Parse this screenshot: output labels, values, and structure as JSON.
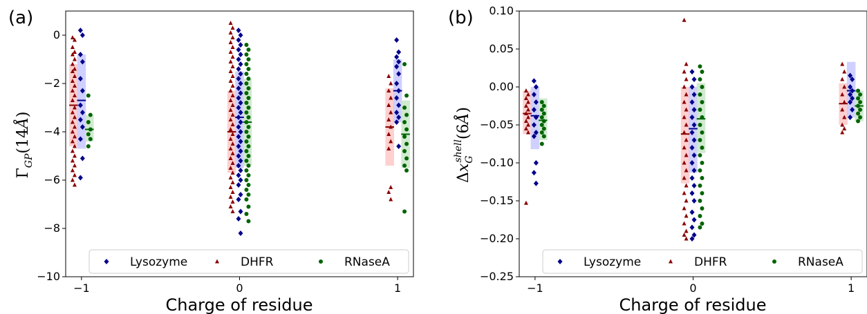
{
  "figure": {
    "panel_a": "(a)",
    "panel_b": "(b)"
  },
  "colors": {
    "Lysozyme": "#00008b",
    "DHFR": "#8b0000",
    "RNaseA": "#006400",
    "Lysozyme_box": "#c8c8ff",
    "DHFR_box": "#ffc8c8",
    "RNaseA_box": "#c8e6c8"
  },
  "chart_data": [
    {
      "type": "scatter",
      "panel": "(a)",
      "xlabel": "Charge of residue",
      "ylabel": "Γ_GP(14Å)",
      "xlim": [
        -1.1,
        1.1
      ],
      "ylim": [
        -10,
        1
      ],
      "xticks": [
        -1,
        0,
        1
      ],
      "xtick_labels": [
        "−1",
        "0",
        "1"
      ],
      "yticks": [
        -10,
        -8,
        -6,
        -4,
        -2,
        0
      ],
      "ytick_labels": [
        "−10",
        "−8",
        "−6",
        "−4",
        "−2",
        "0"
      ],
      "legend": {
        "placement": "lower-right",
        "entries": [
          "Lysozyme",
          "DHFR",
          "RNaseA"
        ]
      },
      "series": [
        {
          "name": "DHFR",
          "marker": "triangle",
          "offset": -0.05,
          "groups": [
            {
              "x": -1,
              "mean": -2.9,
              "band": [
                -4.6,
                -1.2
              ],
              "points": [
                -0.1,
                -0.2,
                -0.5,
                -0.7,
                -0.8,
                -1.0,
                -1.2,
                -1.4,
                -1.5,
                -1.7,
                -1.9,
                -2.1,
                -2.3,
                -2.5,
                -2.7,
                -3.0,
                -3.2,
                -3.4,
                -3.6,
                -3.8,
                -4.0,
                -4.2,
                -4.4,
                -4.6,
                -4.8,
                -5.0,
                -5.2,
                -5.4,
                -5.6,
                -5.8,
                -6.0,
                -6.2
              ]
            },
            {
              "x": 0,
              "mean": -4.0,
              "band": [
                -5.7,
                -2.3
              ],
              "points": [
                0.5,
                0.3,
                0.1,
                -0.1,
                -0.3,
                -0.5,
                -0.7,
                -0.9,
                -1.1,
                -1.3,
                -1.5,
                -1.7,
                -1.9,
                -2.1,
                -2.3,
                -2.5,
                -2.7,
                -2.9,
                -3.1,
                -3.3,
                -3.5,
                -3.7,
                -3.9,
                -4.1,
                -4.3,
                -4.5,
                -4.7,
                -4.9,
                -5.1,
                -5.3,
                -5.5,
                -5.7,
                -5.9,
                -6.1,
                -6.3,
                -6.5,
                -6.7,
                -6.9,
                -7.1,
                -7.3
              ]
            },
            {
              "x": 1,
              "mean": -3.8,
              "band": [
                -5.4,
                -2.2
              ],
              "points": [
                -1.7,
                -2.0,
                -2.3,
                -2.6,
                -2.9,
                -3.2,
                -3.5,
                -3.8,
                -4.1,
                -4.4,
                -4.7,
                -6.3,
                -6.5,
                -6.8
              ]
            }
          ]
        },
        {
          "name": "Lysozyme",
          "marker": "diamond",
          "offset": 0.0,
          "groups": [
            {
              "x": -1,
              "mean": -2.7,
              "band": [
                -4.7,
                -0.8
              ],
              "points": [
                0.2,
                0.0,
                -0.8,
                -1.1,
                -1.8,
                -2.3,
                -2.9,
                -3.2,
                -3.5,
                -3.8,
                -4.3,
                -5.1,
                -5.9
              ]
            },
            {
              "x": 0,
              "mean": -3.4,
              "band": [
                -5.5,
                -1.5
              ],
              "points": [
                0.2,
                0.0,
                -0.2,
                -0.4,
                -0.6,
                -0.8,
                -1.0,
                -1.2,
                -1.4,
                -1.6,
                -1.8,
                -2.0,
                -2.2,
                -2.4,
                -2.6,
                -2.8,
                -3.0,
                -3.2,
                -3.4,
                -3.6,
                -3.8,
                -4.0,
                -4.2,
                -4.4,
                -4.6,
                -4.8,
                -5.0,
                -5.2,
                -5.4,
                -5.6,
                -5.8,
                -6.0,
                -6.2,
                -6.6,
                -6.8,
                -7.3,
                -7.6,
                -8.2
              ]
            },
            {
              "x": 1,
              "mean": -2.3,
              "band": [
                -3.6,
                -1.0
              ],
              "points": [
                -0.2,
                -0.7,
                -0.9,
                -1.1,
                -1.3,
                -1.6,
                -2.0,
                -2.3,
                -2.6,
                -2.9,
                -3.2,
                -3.4,
                -3.6,
                -4.6
              ]
            }
          ]
        },
        {
          "name": "RNaseA",
          "marker": "circle",
          "offset": 0.05,
          "groups": [
            {
              "x": -1,
              "mean": -3.9,
              "band": [
                -4.4,
                -3.3
              ],
              "points": [
                -2.5,
                -3.3,
                -3.6,
                -3.9,
                -4.1,
                -4.3,
                -4.6
              ]
            },
            {
              "x": 0,
              "mean": -3.6,
              "band": [
                -5.4,
                -1.8
              ],
              "points": [
                -0.4,
                -0.6,
                -0.8,
                -1.0,
                -1.2,
                -1.4,
                -1.6,
                -1.8,
                -2.0,
                -2.2,
                -2.4,
                -2.6,
                -2.8,
                -3.0,
                -3.2,
                -3.4,
                -3.6,
                -3.8,
                -4.0,
                -4.2,
                -4.4,
                -4.6,
                -4.8,
                -5.0,
                -5.2,
                -5.4,
                -5.6,
                -5.8,
                -6.0,
                -6.2,
                -6.4,
                -6.6,
                -6.8,
                -7.1,
                -7.4,
                -7.7
              ]
            },
            {
              "x": 1,
              "mean": -4.1,
              "band": [
                -5.5,
                -2.7
              ],
              "points": [
                -1.2,
                -2.5,
                -3.0,
                -3.3,
                -3.6,
                -3.9,
                -4.2,
                -4.5,
                -4.8,
                -5.1,
                -5.4,
                -5.6,
                -7.3
              ]
            }
          ]
        }
      ]
    },
    {
      "type": "scatter",
      "panel": "(b)",
      "xlabel": "Charge of residue",
      "ylabel": "Δx_G^shell(6Å)",
      "xlim": [
        -1.1,
        1.1
      ],
      "ylim": [
        -0.25,
        0.1
      ],
      "xticks": [
        -1,
        0,
        1
      ],
      "xtick_labels": [
        "−1",
        "0",
        "1"
      ],
      "yticks": [
        -0.25,
        -0.2,
        -0.15,
        -0.1,
        -0.05,
        0.0,
        0.05,
        0.1
      ],
      "ytick_labels": [
        "−0.25",
        "−0.20",
        "−0.15",
        "−0.10",
        "−0.05",
        "0.00",
        "0.05",
        "0.10"
      ],
      "legend": {
        "placement": "lower-right",
        "entries": [
          "Lysozyme",
          "DHFR",
          "RNaseA"
        ]
      },
      "series": [
        {
          "name": "DHFR",
          "marker": "triangle",
          "offset": -0.05,
          "groups": [
            {
              "x": -1,
              "mean": -0.035,
              "band": [
                -0.062,
                -0.005
              ],
              "points": [
                -0.005,
                -0.01,
                -0.015,
                -0.02,
                -0.025,
                -0.03,
                -0.035,
                -0.04,
                -0.045,
                -0.05,
                -0.055,
                -0.06,
                -0.153
              ]
            },
            {
              "x": 0,
              "mean": -0.062,
              "band": [
                -0.127,
                0.0
              ],
              "points": [
                0.088,
                0.03,
                0.02,
                0.01,
                0.0,
                -0.01,
                -0.02,
                -0.03,
                -0.04,
                -0.05,
                -0.06,
                -0.07,
                -0.08,
                -0.09,
                -0.1,
                -0.11,
                -0.12,
                -0.13,
                -0.14,
                -0.15,
                -0.16,
                -0.17,
                -0.18,
                -0.19,
                -0.195,
                -0.2
              ]
            },
            {
              "x": 1,
              "mean": -0.022,
              "band": [
                -0.05,
                0.005
              ],
              "points": [
                0.03,
                0.02,
                0.01,
                0.0,
                -0.01,
                -0.02,
                -0.03,
                -0.04,
                -0.05,
                -0.055,
                -0.06
              ]
            }
          ]
        },
        {
          "name": "Lysozyme",
          "marker": "diamond",
          "offset": 0.0,
          "groups": [
            {
              "x": -1,
              "mean": -0.038,
              "band": [
                -0.082,
                0.0
              ],
              "points": [
                0.008,
                0.0,
                -0.01,
                -0.02,
                -0.03,
                -0.04,
                -0.05,
                -0.06,
                -0.065,
                -0.1,
                -0.113,
                -0.127
              ]
            },
            {
              "x": 0,
              "mean": -0.055,
              "band": [
                -0.113,
                0.0
              ],
              "points": [
                0.02,
                0.01,
                0.0,
                -0.01,
                -0.02,
                -0.03,
                -0.04,
                -0.05,
                -0.06,
                -0.07,
                -0.08,
                -0.09,
                -0.1,
                -0.11,
                -0.12,
                -0.13,
                -0.14,
                -0.15,
                -0.165,
                -0.175,
                -0.185,
                -0.195,
                -0.2
              ]
            },
            {
              "x": 1,
              "mean": -0.005,
              "band": [
                -0.04,
                0.033
              ],
              "points": [
                0.015,
                0.01,
                0.0,
                -0.005,
                -0.01,
                -0.015,
                -0.02,
                -0.03,
                -0.04
              ]
            }
          ]
        },
        {
          "name": "RNaseA",
          "marker": "circle",
          "offset": 0.05,
          "groups": [
            {
              "x": -1,
              "mean": -0.044,
              "band": [
                -0.07,
                -0.015
              ],
              "points": [
                -0.02,
                -0.025,
                -0.03,
                -0.035,
                -0.04,
                -0.045,
                -0.05,
                -0.055,
                -0.06,
                -0.065,
                -0.075
              ]
            },
            {
              "x": 0,
              "mean": -0.042,
              "band": [
                -0.087,
                0.005
              ],
              "points": [
                0.027,
                0.02,
                0.01,
                0.0,
                -0.01,
                -0.02,
                -0.03,
                -0.04,
                -0.05,
                -0.06,
                -0.07,
                -0.08,
                -0.09,
                -0.1,
                -0.11,
                -0.12,
                -0.13,
                -0.14,
                -0.15,
                -0.16,
                -0.17,
                -0.18,
                -0.185
              ]
            },
            {
              "x": 1,
              "mean": -0.025,
              "band": [
                -0.045,
                -0.005
              ],
              "points": [
                -0.005,
                -0.01,
                -0.015,
                -0.02,
                -0.025,
                -0.03,
                -0.035,
                -0.04,
                -0.045
              ]
            }
          ]
        }
      ]
    }
  ]
}
